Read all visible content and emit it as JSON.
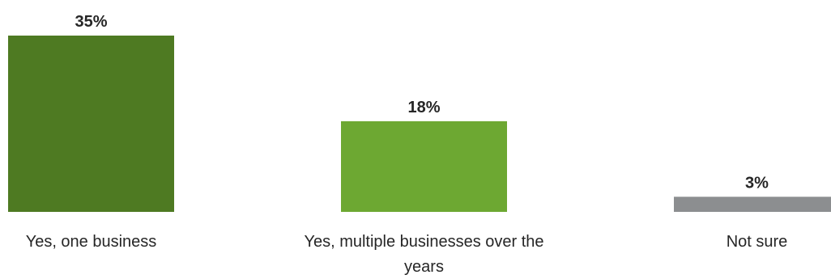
{
  "chart_data": {
    "type": "bar",
    "categories": [
      [
        "Yes, one business"
      ],
      [
        "Yes, multiple businesses over the",
        "years"
      ],
      [
        "Not sure"
      ]
    ],
    "values": [
      35,
      18,
      3
    ],
    "value_labels": [
      "35%",
      "18%",
      "3%"
    ],
    "colors": [
      "#4e7a22",
      "#6da832",
      "#8c8e90"
    ],
    "ylim": [
      0,
      35
    ],
    "grid": false,
    "legend": "none"
  }
}
